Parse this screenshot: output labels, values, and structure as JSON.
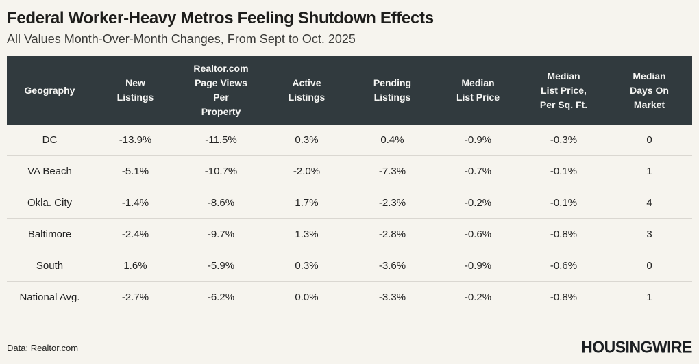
{
  "page": {
    "title": "Federal Worker-Heavy Metros Feeling Shutdown Effects",
    "subtitle": "All Values Month-Over-Month Changes, From Sept to Oct. 2025"
  },
  "table": {
    "columns_display": [
      "Geography",
      "New\nListings",
      "Realtor.com\nPage Views\nPer\nProperty",
      "Active\nListings",
      "Pending\nListings",
      "Median\nList Price",
      "Median\nList Price,\nPer Sq. Ft.",
      "Median\nDays On\nMarket"
    ],
    "rows": [
      {
        "geography": "DC",
        "values": [
          "-13.9%",
          "-11.5%",
          "0.3%",
          "0.4%",
          "-0.9%",
          "-0.3%",
          "0"
        ]
      },
      {
        "geography": "VA Beach",
        "values": [
          "-5.1%",
          "-10.7%",
          "-2.0%",
          "-7.3%",
          "-0.7%",
          "-0.1%",
          "1"
        ]
      },
      {
        "geography": "Okla. City",
        "values": [
          "-1.4%",
          "-8.6%",
          "1.7%",
          "-2.3%",
          "-0.2%",
          "-0.1%",
          "4"
        ]
      },
      {
        "geography": "Baltimore",
        "values": [
          "-2.4%",
          "-9.7%",
          "1.3%",
          "-2.8%",
          "-0.6%",
          "-0.8%",
          "3"
        ]
      },
      {
        "geography": "South",
        "values": [
          "1.6%",
          "-5.9%",
          "0.3%",
          "-3.6%",
          "-0.9%",
          "-0.6%",
          "0"
        ]
      },
      {
        "geography": "National Avg.",
        "values": [
          "-2.7%",
          "-6.2%",
          "0.0%",
          "-3.3%",
          "-0.2%",
          "-0.8%",
          "1"
        ]
      }
    ]
  },
  "chart_data": {
    "type": "table",
    "title": "Federal Worker-Heavy Metros Feeling Shutdown Effects",
    "subtitle": "All Values Month-Over-Month Changes, From Sept to Oct. 2025",
    "columns": [
      "Geography",
      "New Listings",
      "Realtor.com Page Views Per Property",
      "Active Listings",
      "Pending Listings",
      "Median List Price",
      "Median List Price, Per Sq. Ft.",
      "Median Days On Market"
    ],
    "rows": [
      [
        "DC",
        "-13.9%",
        "-11.5%",
        "0.3%",
        "0.4%",
        "-0.9%",
        "-0.3%",
        "0"
      ],
      [
        "VA Beach",
        "-5.1%",
        "-10.7%",
        "-2.0%",
        "-7.3%",
        "-0.7%",
        "-0.1%",
        "1"
      ],
      [
        "Okla. City",
        "-1.4%",
        "-8.6%",
        "1.7%",
        "-2.3%",
        "-0.2%",
        "-0.1%",
        "4"
      ],
      [
        "Baltimore",
        "-2.4%",
        "-9.7%",
        "1.3%",
        "-2.8%",
        "-0.6%",
        "-0.8%",
        "3"
      ],
      [
        "South",
        "1.6%",
        "-5.9%",
        "0.3%",
        "-3.6%",
        "-0.9%",
        "-0.6%",
        "0"
      ],
      [
        "National Avg.",
        "-2.7%",
        "-6.2%",
        "0.0%",
        "-3.3%",
        "-0.2%",
        "-0.8%",
        "1"
      ]
    ],
    "source": "Data: Realtor.com",
    "brand": "HOUSINGWIRE"
  },
  "footer": {
    "source_prefix": "Data: ",
    "source_link": "Realtor.com",
    "brand": "HOUSINGWIRE"
  },
  "colors": {
    "background": "#f6f4ee",
    "header_bg": "#313a3e",
    "header_text": "#f5f5f3",
    "row_divider": "#dad7d1",
    "body_text": "#232323"
  }
}
